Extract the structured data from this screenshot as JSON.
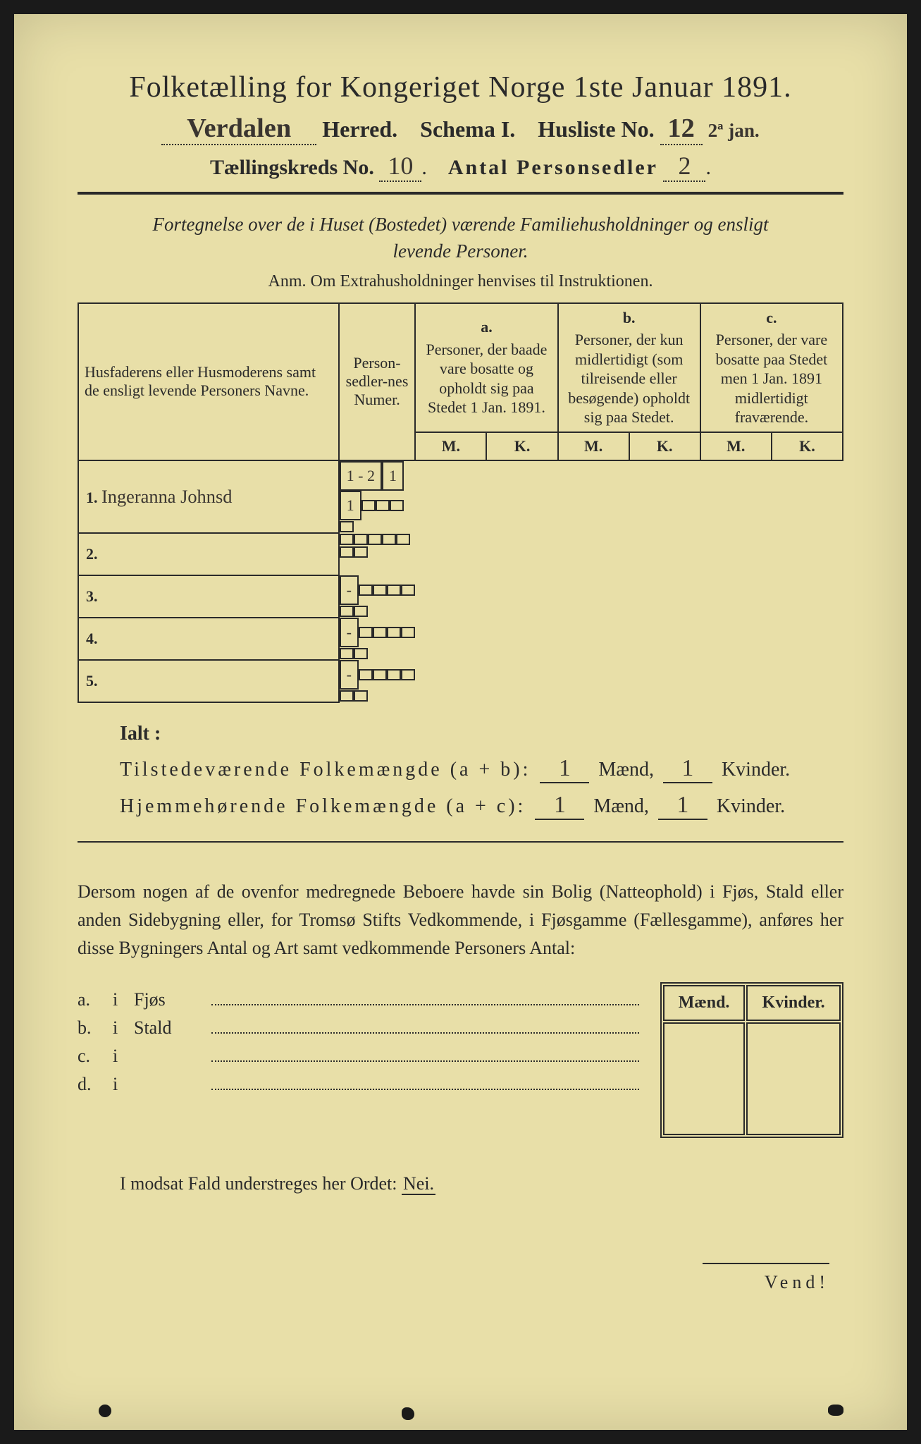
{
  "colors": {
    "paper": "#e8dfa8",
    "ink": "#2a2a2a",
    "handwriting": "#3a3530",
    "frame": "#1a1a1a"
  },
  "header": {
    "title": "Folketælling for Kongeriget Norge 1ste Januar 1891.",
    "herred_hw": "Verdalen",
    "herred_label": "Herred.",
    "schema": "Schema I.",
    "husliste_label": "Husliste No.",
    "husliste_hw": "12",
    "husliste_date_hw": "2ª jan.",
    "kreds_label": "Tællingskreds No.",
    "kreds_hw": "10",
    "personsedler_label": "Antal Personsedler",
    "personsedler_hw": "2"
  },
  "subtitle": {
    "line1": "Fortegnelse over de i Huset (Bostedet) værende Familiehusholdninger og ensligt",
    "line2": "levende Personer.",
    "anm": "Anm.  Om Extrahusholdninger henvises til Instruktionen."
  },
  "table": {
    "col_names_header": "Husfaderens eller Husmoderens samt de ensligt levende Personers Navne.",
    "col_numer_header": "Person-sedler-nes Numer.",
    "col_a": {
      "letter": "a.",
      "text": "Personer, der baade vare bosatte og opholdt sig paa Stedet 1 Jan. 1891."
    },
    "col_b": {
      "letter": "b.",
      "text": "Personer, der kun midlertidigt (som tilreisende eller besøgende) opholdt sig paa Stedet."
    },
    "col_c": {
      "letter": "c.",
      "text": "Personer, der vare bosatte paa Stedet men 1 Jan. 1891 midlertidigt fraværende."
    },
    "mk_m": "M.",
    "mk_k": "K.",
    "rows": [
      {
        "num": "1.",
        "name_hw": "Ingeranna Johnsd",
        "numer_hw": "1 - 2",
        "a_m": "1",
        "a_k": "1",
        "b_m": "",
        "b_k": "",
        "c_m": "",
        "c_k": ""
      },
      {
        "num": "2.",
        "name_hw": "",
        "numer_hw": "",
        "a_m": "",
        "a_k": "",
        "b_m": "",
        "b_k": "",
        "c_m": "",
        "c_k": ""
      },
      {
        "num": "3.",
        "name_hw": "",
        "numer_hw": "-",
        "a_m": "",
        "a_k": "",
        "b_m": "",
        "b_k": "",
        "c_m": "",
        "c_k": ""
      },
      {
        "num": "4.",
        "name_hw": "",
        "numer_hw": "-",
        "a_m": "",
        "a_k": "",
        "b_m": "",
        "b_k": "",
        "c_m": "",
        "c_k": ""
      },
      {
        "num": "5.",
        "name_hw": "",
        "numer_hw": "-",
        "a_m": "",
        "a_k": "",
        "b_m": "",
        "b_k": "",
        "c_m": "",
        "c_k": ""
      }
    ]
  },
  "ialt": {
    "label": "Ialt :",
    "line1_label": "Tilstedeværende Folkemængde (a + b):",
    "line2_label": "Hjemmehørende Folkemængde (a + c):",
    "maend": "Mænd,",
    "kvinder": "Kvinder.",
    "line1_m_hw": "1",
    "line1_k_hw": "1",
    "line2_m_hw": "1",
    "line2_k_hw": "1"
  },
  "paragraph": "Dersom nogen af de ovenfor medregnede Beboere havde sin Bolig (Natteophold) i Fjøs, Stald eller anden Sidebygning eller, for Tromsø Stifts Vedkommende, i Fjøsgamme (Fællesgamme), anføres her disse Bygningers Antal og Art samt vedkommende Personers Antal:",
  "abcd": {
    "a": {
      "lbl": "a.",
      "i": "i",
      "type": "Fjøs"
    },
    "b": {
      "lbl": "b.",
      "i": "i",
      "type": "Stald"
    },
    "c": {
      "lbl": "c.",
      "i": "i",
      "type": ""
    },
    "d": {
      "lbl": "d.",
      "i": "i",
      "type": ""
    }
  },
  "mkbox": {
    "m": "Mænd.",
    "k": "Kvinder."
  },
  "footer": {
    "text_pre": "I modsat Fald understreges her Ordet: ",
    "nei": "Nei.",
    "vend": "Vend!"
  }
}
